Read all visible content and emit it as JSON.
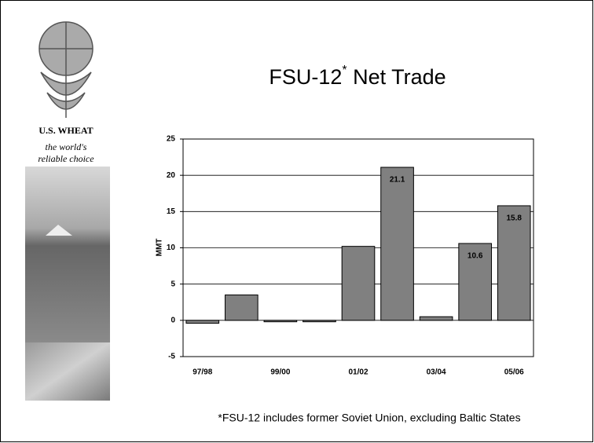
{
  "brand": {
    "name": "U.S. WHEAT",
    "tagline": [
      "the world's",
      "reliable choice"
    ]
  },
  "chart_data": {
    "type": "bar",
    "title": {
      "main": "FSU-12",
      "superscript": "*",
      "rest": " Net Trade"
    },
    "y_label": "MMT",
    "footnote": "*FSU-12 includes former Soviet Union, excluding Baltic States",
    "categories": [
      "97/98",
      null,
      "99/00",
      null,
      "01/02",
      null,
      "03/04",
      null,
      "05/06"
    ],
    "values": [
      -0.4,
      3.5,
      -0.2,
      -0.2,
      10.2,
      21.1,
      0.5,
      10.6,
      15.8
    ],
    "value_labels": [
      null,
      null,
      null,
      null,
      null,
      "21.1",
      null,
      "10.6",
      "15.8"
    ],
    "color": "#808080",
    "ylim": [
      -5,
      25
    ],
    "yticks": [
      -5,
      0,
      5,
      10,
      15,
      20,
      25
    ],
    "grid": true
  }
}
